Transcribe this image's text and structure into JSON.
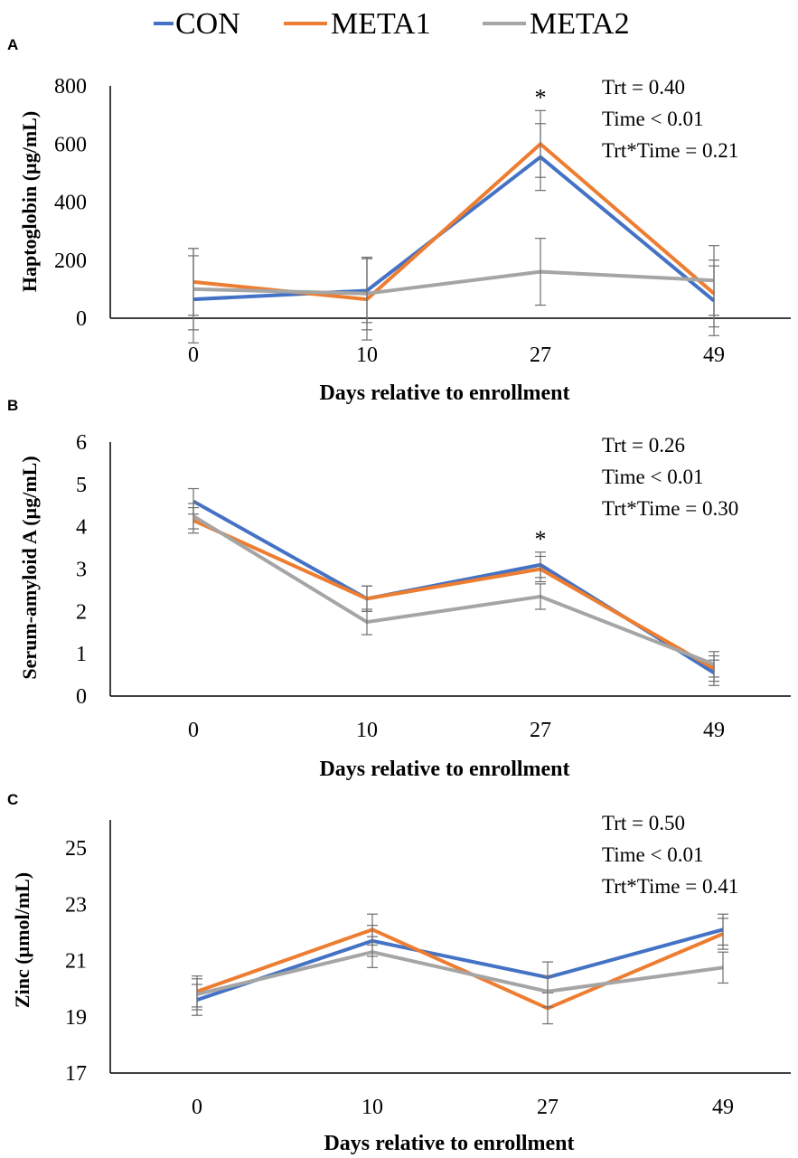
{
  "legend": {
    "items": [
      {
        "label": "CON",
        "color": "#4472C4"
      },
      {
        "label": "META1",
        "color": "#ED7D31"
      },
      {
        "label": "META2",
        "color": "#A5A5A5"
      }
    ]
  },
  "chart_data": [
    {
      "panel_label": "A",
      "type": "line",
      "categories": [
        "0",
        "10",
        "27",
        "49"
      ],
      "ylabel": "Haptoglobin (µg/mL)",
      "xlabel": "Days relative to enrollment",
      "ylim": [
        0,
        800
      ],
      "yticks": [
        "0",
        "200",
        "400",
        "600",
        "800"
      ],
      "series": [
        {
          "name": "CON",
          "color": "#4472C4",
          "values": [
            65,
            95,
            555,
            60
          ],
          "errors": [
            150,
            110,
            115,
            120
          ]
        },
        {
          "name": "META1",
          "color": "#ED7D31",
          "values": [
            125,
            65,
            600,
            85
          ],
          "errors": [
            115,
            140,
            115,
            115
          ]
        },
        {
          "name": "META2",
          "color": "#A5A5A5",
          "values": [
            100,
            85,
            160,
            130
          ],
          "errors": [
            140,
            125,
            115,
            120
          ]
        }
      ],
      "annotations": [
        "Trt = 0.40",
        "Time < 0.01",
        "Trt*Time = 0.21"
      ],
      "significance": [
        {
          "category": "27",
          "label": "*"
        }
      ]
    },
    {
      "panel_label": "B",
      "type": "line",
      "categories": [
        "0",
        "10",
        "27",
        "49"
      ],
      "ylabel": "Serum-amyloid A (µg/mL)",
      "xlabel": "Days relative to enrollment",
      "ylim": [
        0,
        6
      ],
      "yticks": [
        "0",
        "1",
        "2",
        "3",
        "4",
        "5",
        "6"
      ],
      "series": [
        {
          "name": "CON",
          "color": "#4472C4",
          "values": [
            4.6,
            2.3,
            3.1,
            0.55
          ],
          "errors": [
            0.3,
            0.3,
            0.3,
            0.3
          ]
        },
        {
          "name": "META1",
          "color": "#ED7D31",
          "values": [
            4.15,
            2.3,
            3.0,
            0.65
          ],
          "errors": [
            0.3,
            0.3,
            0.3,
            0.3
          ]
        },
        {
          "name": "META2",
          "color": "#A5A5A5",
          "values": [
            4.25,
            1.75,
            2.35,
            0.75
          ],
          "errors": [
            0.3,
            0.3,
            0.3,
            0.3
          ]
        }
      ],
      "annotations": [
        "Trt = 0.26",
        "Time < 0.01",
        "Trt*Time = 0.30"
      ],
      "significance": [
        {
          "category": "27",
          "label": "*"
        }
      ]
    },
    {
      "panel_label": "C",
      "type": "line",
      "categories": [
        "0",
        "10",
        "27",
        "49"
      ],
      "ylabel": "Zinc (µmol/mL)",
      "xlabel": "Days relative to enrollment",
      "ylim": [
        17,
        26
      ],
      "yticks": [
        "17",
        "19",
        "21",
        "23",
        "25"
      ],
      "series": [
        {
          "name": "CON",
          "color": "#4472C4",
          "values": [
            19.6,
            21.7,
            20.4,
            22.1
          ],
          "errors": [
            0.55,
            0.55,
            0.55,
            0.55
          ]
        },
        {
          "name": "META1",
          "color": "#ED7D31",
          "values": [
            19.9,
            22.1,
            19.3,
            21.95
          ],
          "errors": [
            0.55,
            0.55,
            0.55,
            0.55
          ]
        },
        {
          "name": "META2",
          "color": "#A5A5A5",
          "values": [
            19.8,
            21.3,
            19.9,
            20.75
          ],
          "errors": [
            0.55,
            0.55,
            0.55,
            0.55
          ]
        }
      ],
      "annotations": [
        "Trt = 0.50",
        "Time < 0.01",
        "Trt*Time = 0.41"
      ],
      "significance": []
    }
  ]
}
